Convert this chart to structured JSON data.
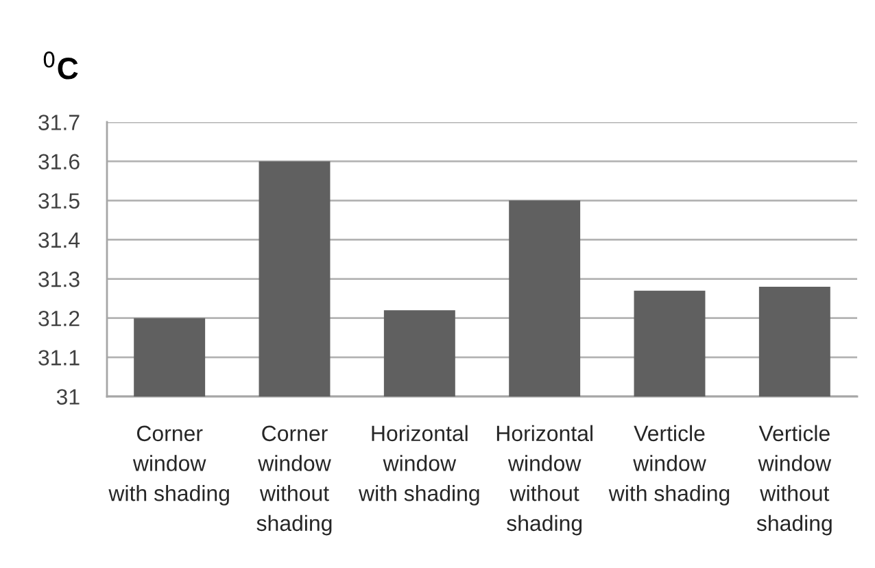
{
  "chart_data": {
    "type": "bar",
    "ylabel": "$^{0}$C",
    "categories": [
      "Corner\nwindow\nwith shading",
      "Corner\nwindow\nwithout\nshading",
      "Horizontal\nwindow\nwith shading",
      "Horizontal\nwindow\nwithout\nshading",
      "Verticle\nwindow\nwith shading",
      "Verticle\nwindow\nwithout\nshading"
    ],
    "values": [
      31.2,
      31.6,
      31.22,
      31.5,
      31.27,
      31.28
    ],
    "color": "#606060",
    "ylim": [
      31,
      31.7
    ],
    "yticks": [
      31,
      31.1,
      31.2,
      31.3,
      31.4,
      31.5,
      31.6,
      31.7
    ],
    "grid": "y",
    "legend": false
  }
}
